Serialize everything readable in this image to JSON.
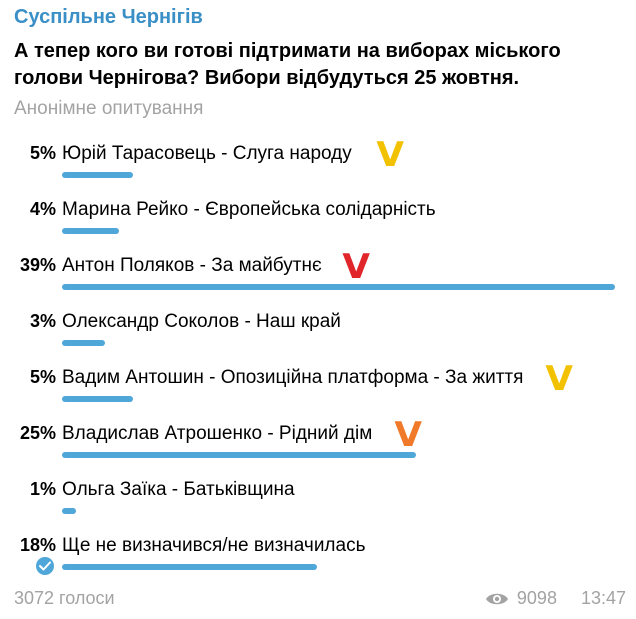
{
  "channel": {
    "name": "Суспільне Чернігів"
  },
  "poll": {
    "question": "А тепер кого ви готові підтримати на виборах міського голови Чернігова? Вибори відбудуться 25 жовтня.",
    "type_label": "Анонімне опитування",
    "options": [
      {
        "percent_text": "5%",
        "percent": 5,
        "label": "Юрій Тарасовець - Слуга народу",
        "mark": "V",
        "mark_color": "#f2c200"
      },
      {
        "percent_text": "4%",
        "percent": 4,
        "label": "Марина Рейко - Європейська солідарність",
        "mark": "",
        "mark_color": ""
      },
      {
        "percent_text": "39%",
        "percent": 39,
        "label": "Антон Поляков - За майбутнє",
        "mark": "V",
        "mark_color": "#e0252b"
      },
      {
        "percent_text": "3%",
        "percent": 3,
        "label": "Олександр Соколов - Наш край",
        "mark": "",
        "mark_color": ""
      },
      {
        "percent_text": "5%",
        "percent": 5,
        "label": "Вадим Антошин - Опозиційна платформа - За життя",
        "mark": "V",
        "mark_color": "#f2c200"
      },
      {
        "percent_text": "25%",
        "percent": 25,
        "label": "Владислав Атрошенко - Рідний дім",
        "mark": "V",
        "mark_color": "#f07a2a"
      },
      {
        "percent_text": "1%",
        "percent": 1,
        "label": "Ольга Заїка - Батьківщина",
        "mark": "",
        "mark_color": ""
      },
      {
        "percent_text": "18%",
        "percent": 18,
        "label": "Ще не визначився/не визначилась",
        "mark": "",
        "mark_color": "",
        "chosen": true
      }
    ]
  },
  "footer": {
    "votes": "3072 голоси",
    "views": "9098",
    "time": "13:47"
  },
  "colors": {
    "accent": "#4fa6d8",
    "channel": "#3a8fc7",
    "muted": "#a3a3a3"
  }
}
